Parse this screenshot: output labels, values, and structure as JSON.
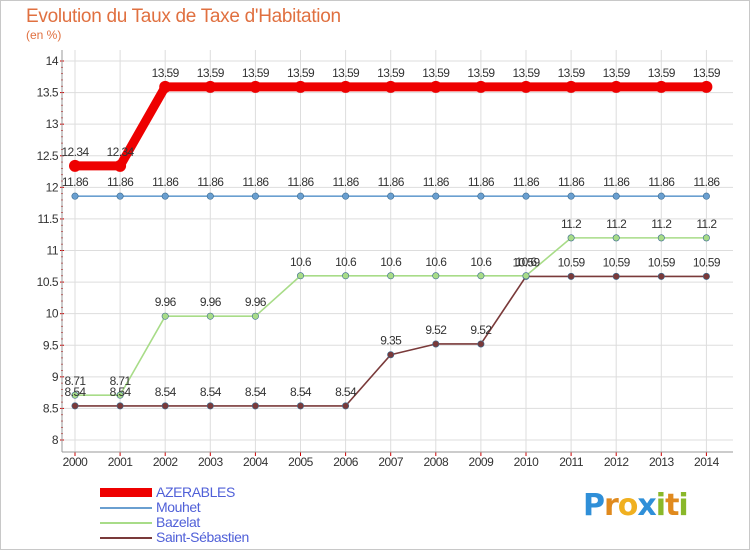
{
  "chart_data": {
    "type": "line",
    "title": "Evolution du Taux de Taxe d'Habitation",
    "subtitle": "(en %)",
    "xlabel": "",
    "ylabel": "",
    "x": [
      "2000",
      "2001",
      "2002",
      "2003",
      "2004",
      "2005",
      "2006",
      "2007",
      "2008",
      "2009",
      "2010",
      "2011",
      "2012",
      "2013",
      "2014"
    ],
    "ylim": [
      8,
      14
    ],
    "yticks": [
      "8",
      "8.5",
      "9",
      "9.5",
      "10",
      "10.5",
      "11",
      "11.5",
      "12",
      "12.5",
      "13",
      "13.5",
      "14"
    ],
    "ytick_values": [
      8,
      8.5,
      9,
      9.5,
      10,
      10.5,
      11,
      11.5,
      12,
      12.5,
      13,
      13.5,
      14
    ],
    "grid": true,
    "series": [
      {
        "name": "AZERABLES",
        "color": "#ee0000",
        "values": [
          12.34,
          12.34,
          13.59,
          13.59,
          13.59,
          13.59,
          13.59,
          13.59,
          13.59,
          13.59,
          13.59,
          13.59,
          13.59,
          13.59,
          13.59
        ],
        "labels": [
          "12.34",
          "12.34",
          "13.59",
          "13.59",
          "13.59",
          "13.59",
          "13.59",
          "13.59",
          "13.59",
          "13.59",
          "13.59",
          "13.59",
          "13.59",
          "13.59",
          "13.59"
        ]
      },
      {
        "name": "Mouhet",
        "color": "#6a9fd0",
        "values": [
          11.86,
          11.86,
          11.86,
          11.86,
          11.86,
          11.86,
          11.86,
          11.86,
          11.86,
          11.86,
          11.86,
          11.86,
          11.86,
          11.86,
          11.86
        ],
        "labels": [
          "11.86",
          "11.86",
          "11.86",
          "11.86",
          "11.86",
          "11.86",
          "11.86",
          "11.86",
          "11.86",
          "11.86",
          "11.86",
          "11.86",
          "11.86",
          "11.86",
          "11.86"
        ]
      },
      {
        "name": "Bazelat",
        "color": "#a8dc88",
        "values": [
          8.71,
          8.71,
          9.96,
          9.96,
          9.96,
          10.6,
          10.6,
          10.6,
          10.6,
          10.6,
          10.6,
          11.2,
          11.2,
          11.2,
          11.2
        ],
        "labels": [
          "8.71",
          "8.71",
          "9.96",
          "9.96",
          "9.96",
          "10.6",
          "10.6",
          "10.6",
          "10.6",
          "10.6",
          "10.6",
          "11.2",
          "11.2",
          "11.2",
          "11.2"
        ]
      },
      {
        "name": "Saint-Sébastien",
        "color": "#7a3a3a",
        "values": [
          8.54,
          8.54,
          8.54,
          8.54,
          8.54,
          8.54,
          8.54,
          9.35,
          9.52,
          9.52,
          10.59,
          10.59,
          10.59,
          10.59,
          10.59
        ],
        "labels": [
          "8.54",
          "8.54",
          "8.54",
          "8.54",
          "8.54",
          "8.54",
          "8.54",
          "9.35",
          "9.52",
          "9.52",
          "10.59",
          "10.59",
          "10.59",
          "10.59",
          "10.59"
        ]
      }
    ],
    "legend_position": "bottom-left"
  },
  "brand": {
    "letters": [
      "P",
      "r",
      "o",
      "x",
      "i",
      "t",
      "i"
    ],
    "colors": [
      "#2f8fd8",
      "#e08a1e",
      "#f0b020",
      "#2f8fd8",
      "#8ab82a",
      "#e08a1e",
      "#8ab82a"
    ]
  }
}
